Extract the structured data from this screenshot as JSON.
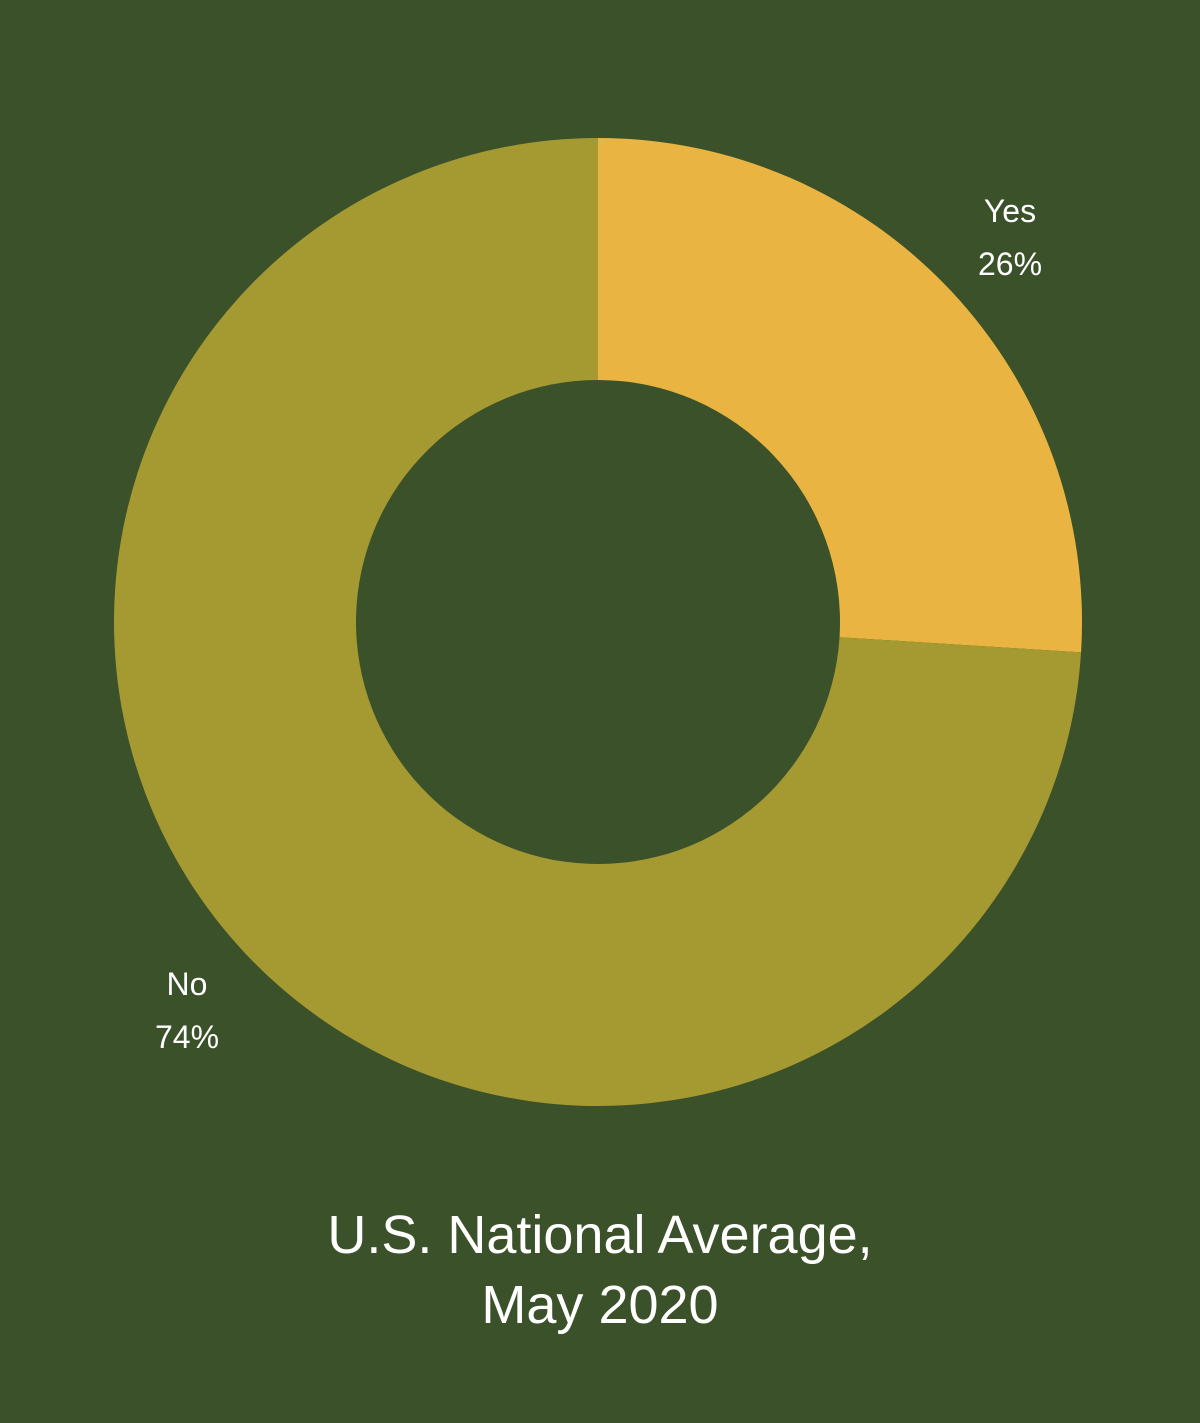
{
  "chart_data": {
    "type": "pie",
    "subtype": "donut",
    "title_lines": [
      "U.S. National Average,",
      "May 2020"
    ],
    "slices": [
      {
        "label": "Yes",
        "value": 26,
        "value_label": "26%",
        "color": "#e9b441"
      },
      {
        "label": "No",
        "value": 74,
        "value_label": "74%",
        "color": "#a59932"
      }
    ],
    "legend": "none",
    "start_angle": "12 o'clock",
    "direction": "clockwise"
  },
  "colors": {
    "background": "#3b5129",
    "label_text": "#ffffff"
  }
}
